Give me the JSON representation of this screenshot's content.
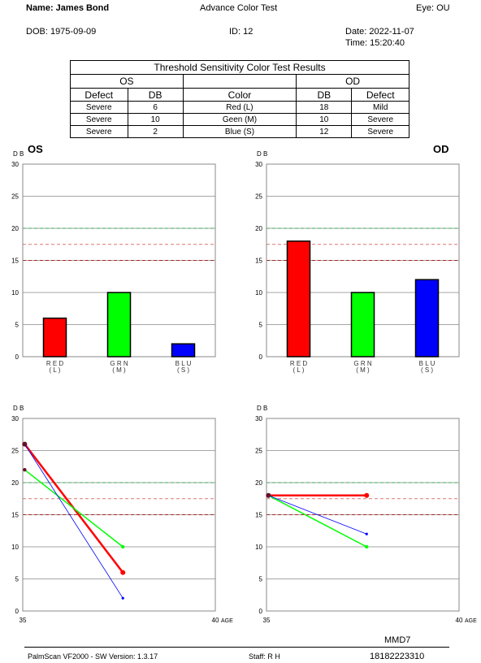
{
  "header": {
    "name": "Name: James Bond",
    "test": "Advance Color Test",
    "eye": "Eye: OU",
    "dob": "DOB: 1975-09-09",
    "id": "ID: 12",
    "date": "Date: 2022-11-07",
    "time": "Time: 15:20:40"
  },
  "table": {
    "title": "Threshold Sensitivity Color Test Results",
    "os_label": "OS",
    "od_label": "OD",
    "col_defect": "Defect",
    "col_db": "DB",
    "col_color": "Color",
    "col_db2": "DB",
    "col_defect2": "Defect",
    "rows": [
      {
        "os_defect": "Severe",
        "os_db": "6",
        "color": "Red (L)",
        "od_db": "18",
        "od_defect": "Mild"
      },
      {
        "os_defect": "Severe",
        "os_db": "10",
        "color": "Geen (M)",
        "od_db": "10",
        "od_defect": "Severe"
      },
      {
        "os_defect": "Severe",
        "os_db": "2",
        "color": "Blue (S)",
        "od_db": "12",
        "od_defect": "Severe"
      }
    ]
  },
  "labels": {
    "os": "OS",
    "od": "OD"
  },
  "colors": {
    "red": "#ff0000",
    "green": "#00ff00",
    "blue": "#0000ff",
    "dark_red": "#cc0000",
    "ref_green": "#33aa55",
    "ref_pink": "#dd7777",
    "ref_darkred": "#aa2222"
  },
  "chart_data": [
    {
      "type": "bar",
      "eye": "OS",
      "ylabel": "D B",
      "ylim": [
        0,
        30
      ],
      "yticks": [
        0,
        5,
        10,
        15,
        20,
        25,
        30
      ],
      "categories": [
        "R E D\n( L )",
        "G R N\n( M )",
        "B L U\n( S )"
      ],
      "values": [
        6,
        10,
        2
      ],
      "reference_lines": [
        20,
        17.5,
        15
      ]
    },
    {
      "type": "bar",
      "eye": "OD",
      "ylabel": "D B",
      "ylim": [
        0,
        30
      ],
      "yticks": [
        0,
        5,
        10,
        15,
        20,
        25,
        30
      ],
      "categories": [
        "R E D\n( L )",
        "G R N\n( M )",
        "B L U\n( S )"
      ],
      "values": [
        18,
        10,
        12
      ],
      "reference_lines": [
        20,
        17.5,
        15
      ]
    },
    {
      "type": "line",
      "eye": "OS",
      "ylabel": "D B",
      "xlabel": "AGE",
      "xlim": [
        35,
        40
      ],
      "xticks": [
        35,
        40
      ],
      "ylim": [
        0,
        30
      ],
      "yticks": [
        0,
        5,
        10,
        15,
        20,
        25,
        30
      ],
      "reference_lines": [
        20,
        17.5,
        15
      ],
      "series": [
        {
          "color": "red",
          "points": [
            [
              35.05,
              26
            ],
            [
              37.6,
              6
            ]
          ]
        },
        {
          "color": "green",
          "points": [
            [
              35.05,
              22
            ],
            [
              37.6,
              10
            ]
          ]
        },
        {
          "color": "blue",
          "points": [
            [
              35.05,
              26
            ],
            [
              37.6,
              2
            ]
          ]
        }
      ]
    },
    {
      "type": "line",
      "eye": "OD",
      "ylabel": "D B",
      "xlabel": "AGE",
      "xlim": [
        35,
        40
      ],
      "xticks": [
        35,
        40
      ],
      "ylim": [
        0,
        30
      ],
      "yticks": [
        0,
        5,
        10,
        15,
        20,
        25,
        30
      ],
      "reference_lines": [
        20,
        17.5,
        15
      ],
      "series": [
        {
          "color": "red",
          "points": [
            [
              35.05,
              18
            ],
            [
              37.6,
              18
            ]
          ]
        },
        {
          "color": "green",
          "points": [
            [
              35.05,
              18
            ],
            [
              37.6,
              10
            ]
          ]
        },
        {
          "color": "blue",
          "points": [
            [
              35.05,
              18
            ],
            [
              37.6,
              12
            ]
          ]
        }
      ]
    }
  ],
  "footer": {
    "code": "MMD7",
    "software": "PalmScan VF2000 - SW Version: 1.3.17",
    "staff": "Staff: R H",
    "serial": "18182223310"
  }
}
